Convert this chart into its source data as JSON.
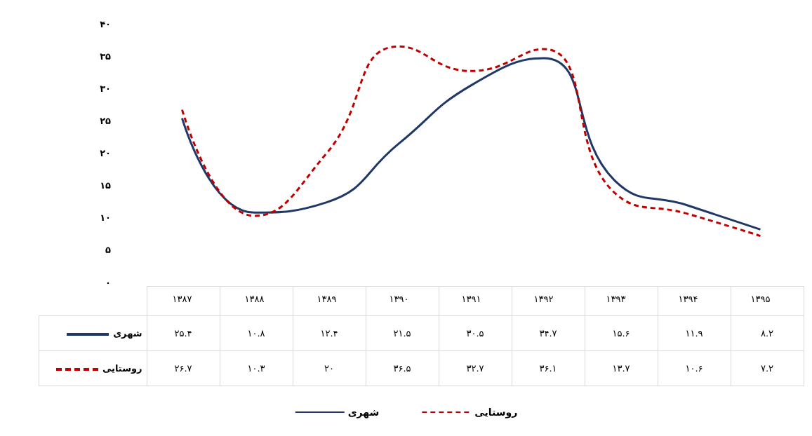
{
  "chart_data": {
    "type": "line",
    "categories": [
      "۱۳۸۷",
      "۱۳۸۸",
      "۱۳۸۹",
      "۱۳۹۰",
      "۱۳۹۱",
      "۱۳۹۲",
      "۱۳۹۳",
      "۱۳۹۴",
      "۱۳۹۵"
    ],
    "series": [
      {
        "name": "شهری",
        "color": "#1f3868",
        "line_style": "solid",
        "values": [
          25.4,
          10.8,
          12.4,
          21.5,
          30.5,
          34.7,
          15.6,
          11.9,
          8.2
        ],
        "value_labels": [
          "۲۵.۴",
          "۱۰.۸",
          "۱۲.۴",
          "۲۱.۵",
          "۳۰.۵",
          "۳۴.۷",
          "۱۵.۶",
          "۱۱.۹",
          "۸.۲"
        ]
      },
      {
        "name": "روستایی",
        "color": "#c00000",
        "line_style": "dashed",
        "values": [
          26.7,
          10.3,
          20,
          36.5,
          32.7,
          36.1,
          13.7,
          10.6,
          7.2
        ],
        "value_labels": [
          "۲۶.۷",
          "۱۰.۳",
          "۲۰",
          "۳۶.۵",
          "۳۲.۷",
          "۳۶.۱",
          "۱۳.۷",
          "۱۰.۶",
          "۷.۲"
        ]
      }
    ],
    "ylim": [
      0,
      40
    ],
    "yticks": [
      {
        "value": 0,
        "label": "۰"
      },
      {
        "value": 5,
        "label": "۵"
      },
      {
        "value": 10,
        "label": "۱۰"
      },
      {
        "value": 15,
        "label": "۱۵"
      },
      {
        "value": 20,
        "label": "۲۰"
      },
      {
        "value": 25,
        "label": "۲۵"
      },
      {
        "value": 30,
        "label": "۳۰"
      },
      {
        "value": 35,
        "label": "۳۵"
      },
      {
        "value": 40,
        "label": "۴۰"
      }
    ],
    "grid": false,
    "legend": "bottom",
    "marker": "none"
  }
}
